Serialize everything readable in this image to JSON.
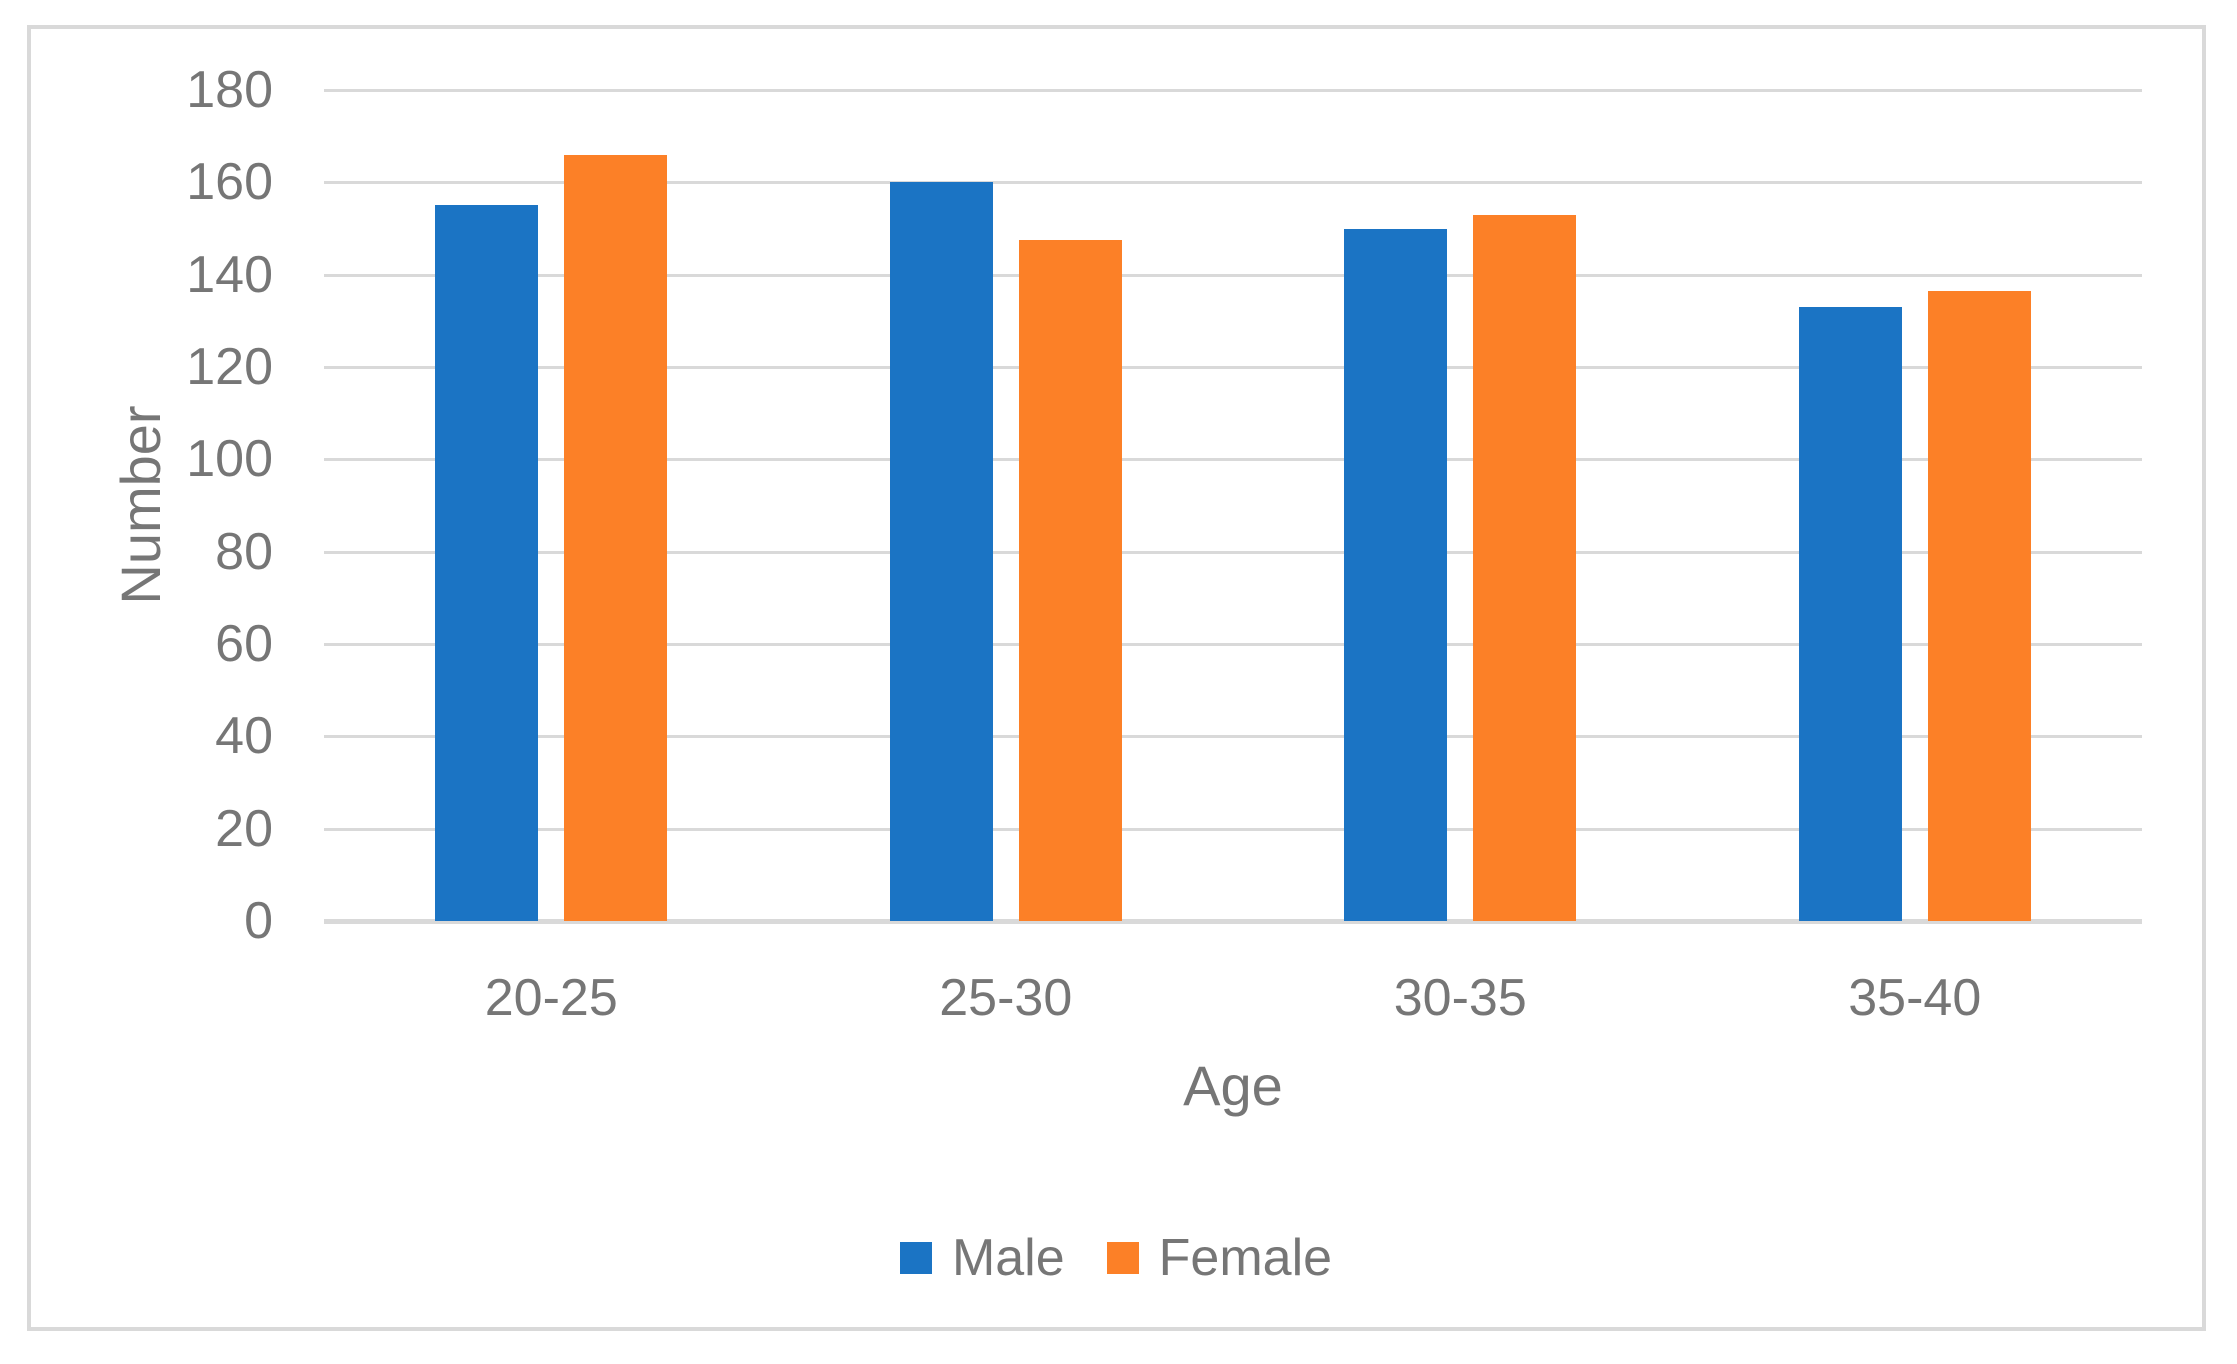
{
  "figure": {
    "background_color": "#FFFFFF",
    "border_color": "#D9D9D9"
  },
  "chart_data": {
    "type": "bar",
    "title": "",
    "categories": [
      "20-25",
      "25-30",
      "30-35",
      "35-40"
    ],
    "series": [
      {
        "name": "Male",
        "color": "#1B74C4",
        "values": [
          155,
          160,
          150,
          133
        ]
      },
      {
        "name": "Female",
        "color": "#FC8027",
        "values": [
          166,
          147.5,
          153,
          136.5
        ]
      }
    ],
    "xlabel": "Age",
    "ylabel": "Number",
    "ylim": [
      0,
      180
    ],
    "yticks": [
      0,
      20,
      40,
      60,
      80,
      100,
      120,
      140,
      160,
      180
    ],
    "grid": true,
    "gridline_color": "#D9D9D9",
    "axis_text_color": "#767676",
    "legend_position": "bottom-center",
    "legend_entries": [
      "Male",
      "Female"
    ]
  }
}
